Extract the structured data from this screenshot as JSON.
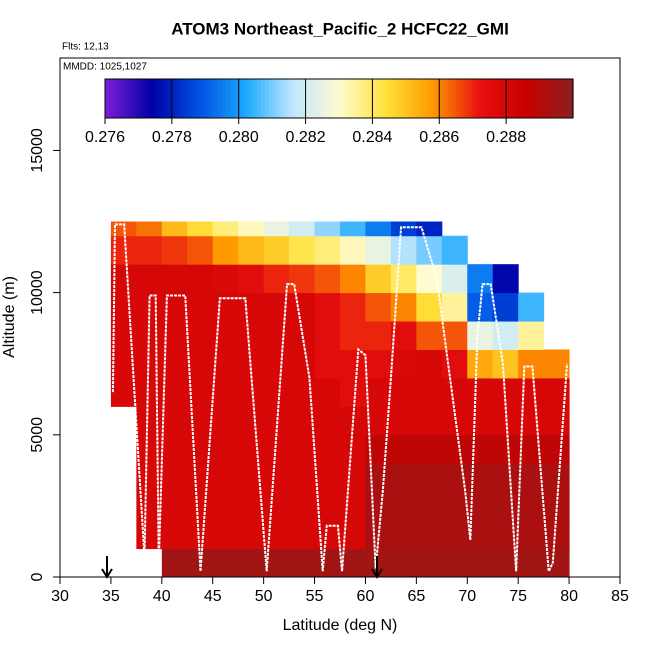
{
  "chart_data": {
    "type": "curtain",
    "title": "ATOM3 Northeast_Pacific_2 HCFC22_GMI",
    "notes": [
      "Flts: 12,13",
      "MMDD: 1025,1027"
    ],
    "x_label": "Latitude (deg N)",
    "y_label": "Altitude (m)",
    "xlim": [
      30,
      85
    ],
    "ylim": [
      0,
      18250
    ],
    "xticks": [
      30,
      35,
      40,
      45,
      50,
      55,
      60,
      65,
      70,
      75,
      80,
      85
    ],
    "yticks": [
      0,
      5000,
      10000,
      15000
    ],
    "colorbar": {
      "range": [
        0.276,
        0.29
      ],
      "ticks": [
        0.276,
        0.278,
        {
          "value": 0.28,
          "label": "0.280"
        },
        0.282,
        0.284,
        0.286,
        0.288
      ],
      "colors": [
        "#7d1fd4",
        "#0000a8",
        "#0050e0",
        "#1aa8ff",
        "#bfe6ff",
        "#fffbd0",
        "#ffe23a",
        "#ff9a00",
        "#e81010",
        "#c80000",
        "#8c2020"
      ]
    },
    "heatmap": {
      "lat_edges": [
        35,
        37.5,
        40,
        42.5,
        45,
        47.5,
        50,
        52.5,
        55,
        57.5,
        60,
        62.5,
        65,
        67.5,
        70,
        72.5,
        75,
        77.5,
        80
      ],
      "alt_edges": [
        0,
        1000,
        2000,
        3000,
        4000,
        5000,
        6000,
        7000,
        8000,
        9000,
        10000,
        11000,
        12000,
        12500
      ],
      "values": [
        [
          null,
          null,
          0.2895,
          0.2895,
          0.2895,
          0.2895,
          0.2895,
          0.2895,
          0.2895,
          0.2895,
          0.2895,
          0.2895,
          0.2895,
          0.2895,
          0.2895,
          0.2895,
          0.2895,
          0.2895
        ],
        [
          null,
          0.288,
          0.288,
          0.288,
          0.288,
          0.288,
          0.288,
          0.288,
          0.288,
          0.288,
          0.2893,
          0.2893,
          0.2893,
          0.2893,
          0.2893,
          0.2893,
          0.2893,
          0.2893
        ],
        [
          null,
          0.288,
          0.288,
          0.288,
          0.288,
          0.288,
          0.288,
          0.288,
          0.288,
          0.288,
          0.2893,
          0.2893,
          0.2893,
          0.2893,
          0.2893,
          0.2893,
          0.2893,
          0.2893
        ],
        [
          null,
          0.288,
          0.288,
          0.288,
          0.288,
          0.288,
          0.288,
          0.288,
          0.288,
          0.288,
          0.2893,
          0.2893,
          0.2893,
          0.2893,
          0.2893,
          0.2893,
          0.2893,
          0.2893
        ],
        [
          null,
          0.288,
          0.288,
          0.288,
          0.288,
          0.288,
          0.288,
          0.288,
          0.288,
          0.288,
          0.2888,
          0.2888,
          0.2888,
          0.2888,
          0.2888,
          0.2888,
          0.2888,
          0.2888
        ],
        [
          null,
          0.288,
          0.288,
          0.288,
          0.288,
          0.288,
          0.288,
          0.288,
          0.288,
          0.288,
          0.288,
          0.288,
          0.288,
          0.288,
          0.288,
          0.288,
          0.288,
          0.288
        ],
        [
          0.288,
          0.288,
          0.288,
          0.288,
          0.288,
          0.288,
          0.288,
          0.288,
          0.288,
          0.2875,
          0.288,
          0.288,
          0.288,
          0.288,
          0.288,
          0.288,
          0.288,
          0.288
        ],
        [
          0.288,
          0.288,
          0.288,
          0.288,
          0.288,
          0.288,
          0.288,
          0.288,
          0.2875,
          0.2875,
          0.2875,
          0.2878,
          0.288,
          0.2875,
          0.2855,
          0.285,
          0.286,
          0.286
        ],
        [
          0.288,
          0.288,
          0.288,
          0.288,
          0.288,
          0.288,
          0.288,
          0.288,
          0.2875,
          0.287,
          0.287,
          0.2875,
          0.2865,
          0.2865,
          0.2825,
          0.282,
          0.2835,
          null
        ],
        [
          0.288,
          0.288,
          0.288,
          0.288,
          0.288,
          0.288,
          0.288,
          0.288,
          0.2875,
          0.287,
          0.2865,
          0.286,
          0.2845,
          0.2835,
          0.279,
          0.2785,
          0.2805,
          null
        ],
        [
          0.288,
          0.288,
          0.288,
          0.288,
          0.2878,
          0.2875,
          0.287,
          0.2868,
          0.2865,
          0.286,
          0.2848,
          0.284,
          0.283,
          0.2822,
          0.2795,
          0.2775,
          null,
          null
        ],
        [
          0.287,
          0.287,
          0.2868,
          0.2865,
          0.2858,
          0.2852,
          0.2848,
          0.2842,
          0.2838,
          0.2832,
          0.2825,
          0.2815,
          0.281,
          0.2805,
          null,
          null,
          null,
          null
        ],
        [
          0.2865,
          0.2862,
          0.2852,
          0.2845,
          0.2838,
          0.2832,
          0.2825,
          0.282,
          0.2812,
          0.2805,
          0.2795,
          0.2785,
          0.278,
          null,
          null,
          null,
          null,
          null
        ]
      ]
    },
    "track": {
      "color": "#ffffff",
      "x": [
        35.2,
        35.4,
        36.3,
        38.3,
        38.8,
        39.4,
        39.7,
        40.5,
        42.3,
        43.8,
        45.7,
        48.2,
        50.3,
        52.3,
        53.0,
        54.5,
        55.8,
        56.2,
        57.3,
        57.7,
        59.3,
        60.0,
        61.0,
        61.7,
        62.5,
        63.5,
        65.5,
        67.0,
        69.8,
        70.3,
        71.0,
        71.5,
        72.3,
        73.5,
        74.8,
        75.6,
        76.4,
        78.0,
        78.4,
        79.8
      ],
      "y": [
        6500,
        12400,
        12400,
        700,
        9900,
        9900,
        500,
        9900,
        9900,
        200,
        9800,
        9800,
        200,
        10300,
        10300,
        7000,
        200,
        1800,
        1800,
        200,
        8000,
        7800,
        300,
        3000,
        7000,
        12300,
        12300,
        10500,
        3000,
        1300,
        8500,
        10300,
        10300,
        7500,
        200,
        7400,
        7400,
        200,
        500,
        7500
      ]
    }
  }
}
